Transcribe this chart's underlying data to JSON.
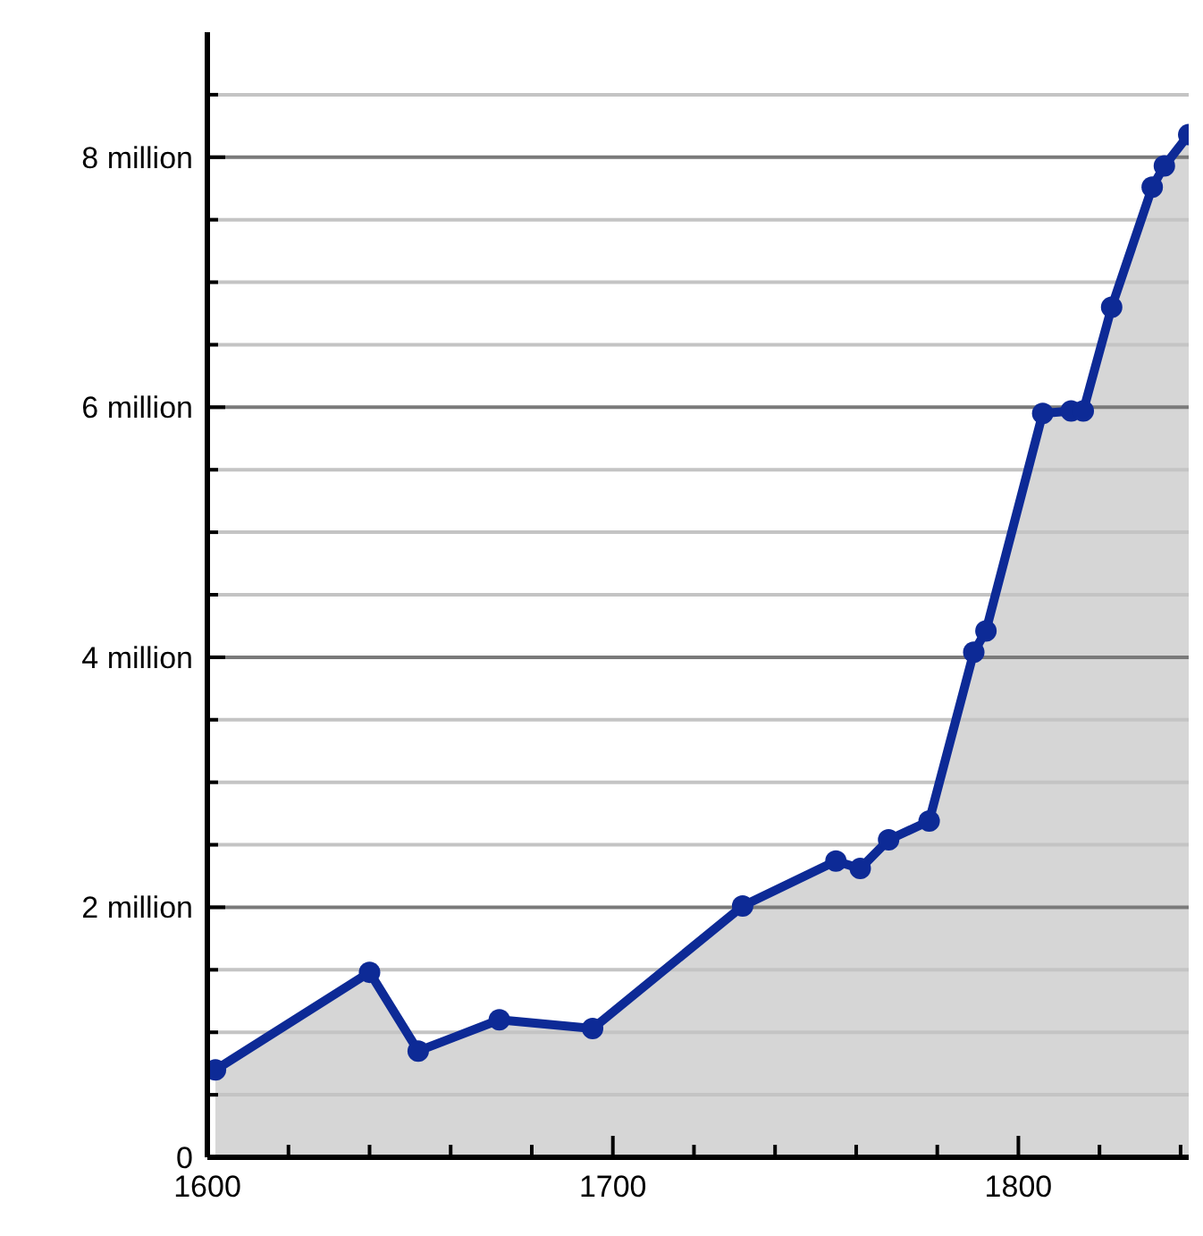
{
  "chart_data": {
    "type": "area",
    "x": [
      1602,
      1640,
      1652,
      1672,
      1695,
      1732,
      1755,
      1761,
      1768,
      1778,
      1789,
      1792,
      1806,
      1813,
      1816,
      1823,
      1833,
      1836,
      1842
    ],
    "series": [
      {
        "color": "#0d2a96",
        "values": [
          0.7,
          1.48,
          0.85,
          1.1,
          1.03,
          2.01,
          2.37,
          2.31,
          2.54,
          2.69,
          4.04,
          4.21,
          5.95,
          5.97,
          5.97,
          6.8,
          7.76,
          7.93,
          8.18
        ]
      }
    ],
    "xlim": [
      1600,
      1842
    ],
    "ylim": [
      0,
      9
    ],
    "xticks": [
      1600,
      {
        "value": 1620,
        "label": null
      },
      {
        "value": 1640,
        "label": null
      },
      {
        "value": 1660,
        "label": null
      },
      {
        "value": 1680,
        "label": null
      },
      1700,
      {
        "value": 1720,
        "label": null
      },
      {
        "value": 1740,
        "label": null
      },
      {
        "value": 1760,
        "label": null
      },
      {
        "value": 1780,
        "label": null
      },
      1800,
      {
        "value": 1820,
        "label": null
      },
      {
        "value": 1840,
        "label": null
      }
    ],
    "yticks": [
      0,
      {
        "value": 0.5,
        "label": null
      },
      {
        "value": 1,
        "label": null
      },
      {
        "value": 1.5,
        "label": null
      },
      {
        "value": 2,
        "label": "2 million"
      },
      {
        "value": 2.5,
        "label": null
      },
      {
        "value": 3,
        "label": null
      },
      {
        "value": 3.5,
        "label": null
      },
      {
        "value": 4,
        "label": "4 million"
      },
      {
        "value": 4.5,
        "label": null
      },
      {
        "value": 5,
        "label": null
      },
      {
        "value": 5.5,
        "label": null
      },
      {
        "value": 6,
        "label": "6 million"
      },
      {
        "value": 6.5,
        "label": null
      },
      {
        "value": 7,
        "label": null
      },
      {
        "value": 7.5,
        "label": null
      },
      {
        "value": 8,
        "label": "8 million"
      },
      {
        "value": 8.5,
        "label": null
      }
    ],
    "grid": "y",
    "marker": "circle",
    "line_style": "solid"
  }
}
